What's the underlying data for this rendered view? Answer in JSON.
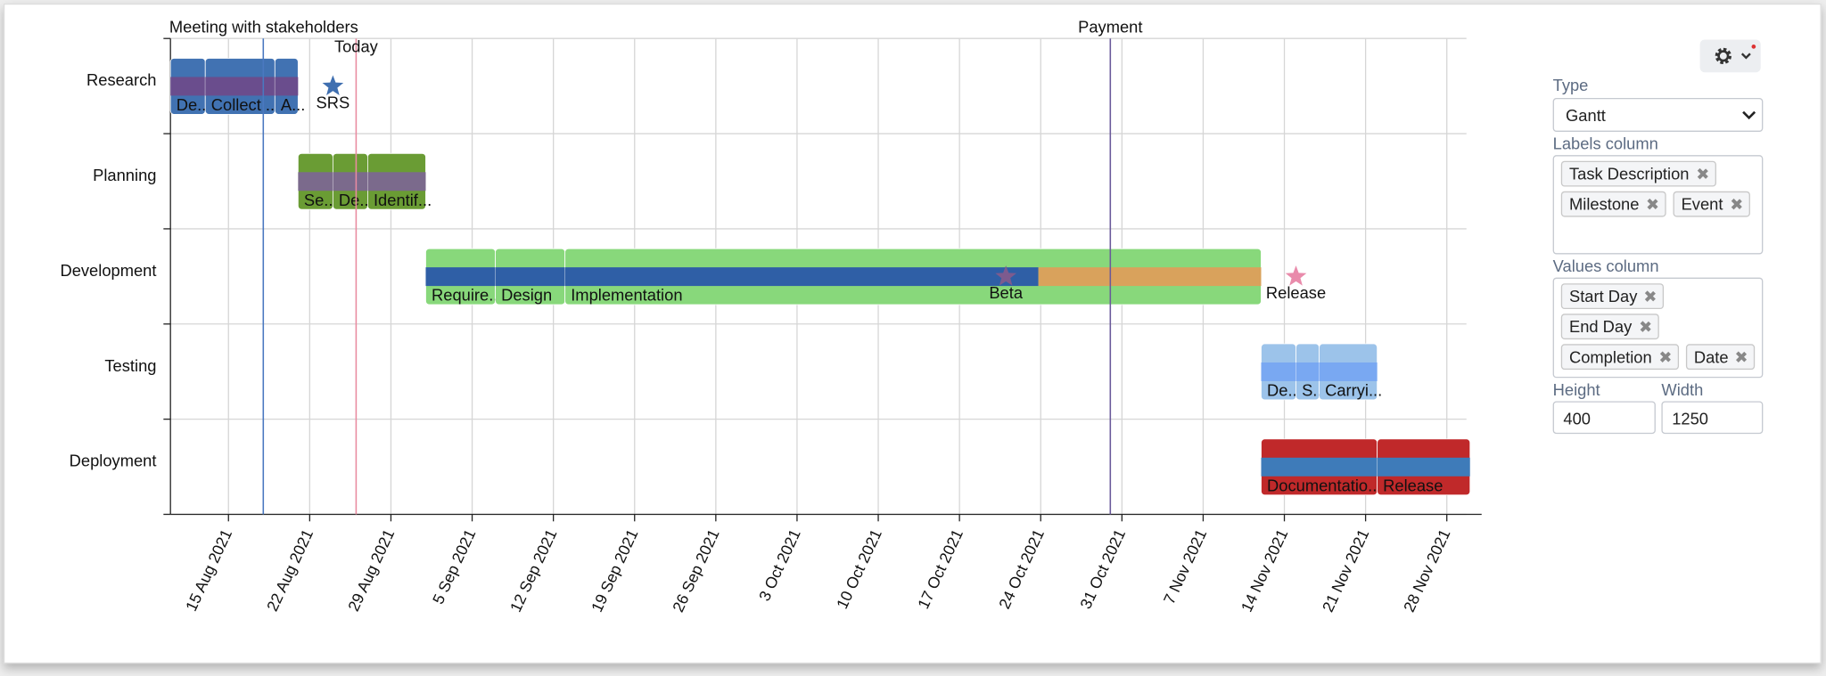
{
  "chart_data": {
    "type": "gantt",
    "xlim": [
      "2021-08-10",
      "2021-12-01"
    ],
    "xticks": [
      {
        "value": "2021-08-15",
        "label": "15 Aug 2021"
      },
      {
        "value": "2021-08-22",
        "label": "22 Aug 2021"
      },
      {
        "value": "2021-08-29",
        "label": "29 Aug 2021"
      },
      {
        "value": "2021-09-05",
        "label": "5 Sep 2021"
      },
      {
        "value": "2021-09-12",
        "label": "12 Sep 2021"
      },
      {
        "value": "2021-09-19",
        "label": "19 Sep 2021"
      },
      {
        "value": "2021-09-26",
        "label": "26 Sep 2021"
      },
      {
        "value": "2021-10-03",
        "label": "3 Oct 2021"
      },
      {
        "value": "2021-10-10",
        "label": "10 Oct 2021"
      },
      {
        "value": "2021-10-17",
        "label": "17 Oct 2021"
      },
      {
        "value": "2021-10-24",
        "label": "24 Oct 2021"
      },
      {
        "value": "2021-10-31",
        "label": "31 Oct 2021"
      },
      {
        "value": "2021-11-07",
        "label": "7 Nov 2021"
      },
      {
        "value": "2021-11-14",
        "label": "14 Nov 2021"
      },
      {
        "value": "2021-11-21",
        "label": "21 Nov 2021"
      },
      {
        "value": "2021-11-28",
        "label": "28 Nov 2021"
      }
    ],
    "grid": true,
    "remaining_color": "#d9a25c",
    "rows": [
      {
        "name": "Research",
        "color": "#4172b2",
        "progress_color": "#6a4d8d",
        "label_color": "#ffffff",
        "tasks": [
          {
            "label": "De...",
            "start": "2021-08-10",
            "end": "2021-08-13",
            "completion": 100
          },
          {
            "label": "Collect ...",
            "start": "2021-08-13",
            "end": "2021-08-19",
            "completion": 100
          },
          {
            "label": "A...",
            "start": "2021-08-19",
            "end": "2021-08-21",
            "completion": 100
          }
        ],
        "milestones": [
          {
            "label": "SRS",
            "date": "2021-08-24",
            "color": "#3f6fb0"
          }
        ]
      },
      {
        "name": "Planning",
        "color": "#6a9c34",
        "progress_color": "#7b6a8c",
        "label_color": "#000000",
        "tasks": [
          {
            "label": "Se...",
            "start": "2021-08-21",
            "end": "2021-08-24",
            "completion": 100
          },
          {
            "label": "De...",
            "start": "2021-08-24",
            "end": "2021-08-27",
            "completion": 100
          },
          {
            "label": "Identif...",
            "start": "2021-08-27",
            "end": "2021-09-01",
            "completion": 100
          }
        ],
        "milestones": []
      },
      {
        "name": "Development",
        "color": "#88d87b",
        "progress_color": "#2f5fa6",
        "label_color": "#000000",
        "tasks": [
          {
            "label": "Require...",
            "start": "2021-09-01",
            "end": "2021-09-07",
            "completion": 100
          },
          {
            "label": "Design",
            "start": "2021-09-07",
            "end": "2021-09-13",
            "completion": 100
          },
          {
            "label": "Implementation",
            "start": "2021-09-13",
            "end": "2021-11-12",
            "completion": 68
          }
        ],
        "milestones": [
          {
            "label": "Beta",
            "date": "2021-10-21",
            "color": "#7d5b8e"
          },
          {
            "label": "Release",
            "date": "2021-11-15",
            "color": "#e98bab"
          }
        ]
      },
      {
        "name": "Testing",
        "color": "#9cc3ea",
        "progress_color": "#79a8f2",
        "label_color": "#000000",
        "tasks": [
          {
            "label": "De...",
            "start": "2021-11-12",
            "end": "2021-11-15",
            "completion": 100
          },
          {
            "label": "S...",
            "start": "2021-11-15",
            "end": "2021-11-17",
            "completion": 100
          },
          {
            "label": "Carryi...",
            "start": "2021-11-17",
            "end": "2021-11-22",
            "completion": 100
          }
        ],
        "milestones": []
      },
      {
        "name": "Deployment",
        "color": "#c0292a",
        "progress_color": "#3e7bb9",
        "label_color": "#ffffff",
        "tasks": [
          {
            "label": "Documentatio...",
            "start": "2021-11-12",
            "end": "2021-11-22",
            "completion": 100
          },
          {
            "label": "Release",
            "start": "2021-11-22",
            "end": "2021-11-30",
            "completion": 100
          }
        ],
        "milestones": []
      }
    ],
    "events": [
      {
        "label": "Meeting with stakeholders",
        "date": "2021-08-18",
        "color": "#4a78c0"
      },
      {
        "label": "Today",
        "date": "2021-08-26",
        "color": "#e98ba0"
      },
      {
        "label": "Payment",
        "date": "2021-10-30",
        "color": "#6a5a9a"
      }
    ]
  },
  "settings": {
    "type_label": "Type",
    "type_value": "Gantt",
    "labels_label": "Labels column",
    "labels": [
      "Task Description",
      "Milestone",
      "Event"
    ],
    "values_label": "Values column",
    "values": [
      "Start Day",
      "End Day",
      "Completion",
      "Date"
    ],
    "height_label": "Height",
    "height": "400",
    "width_label": "Width",
    "width": "1250"
  }
}
